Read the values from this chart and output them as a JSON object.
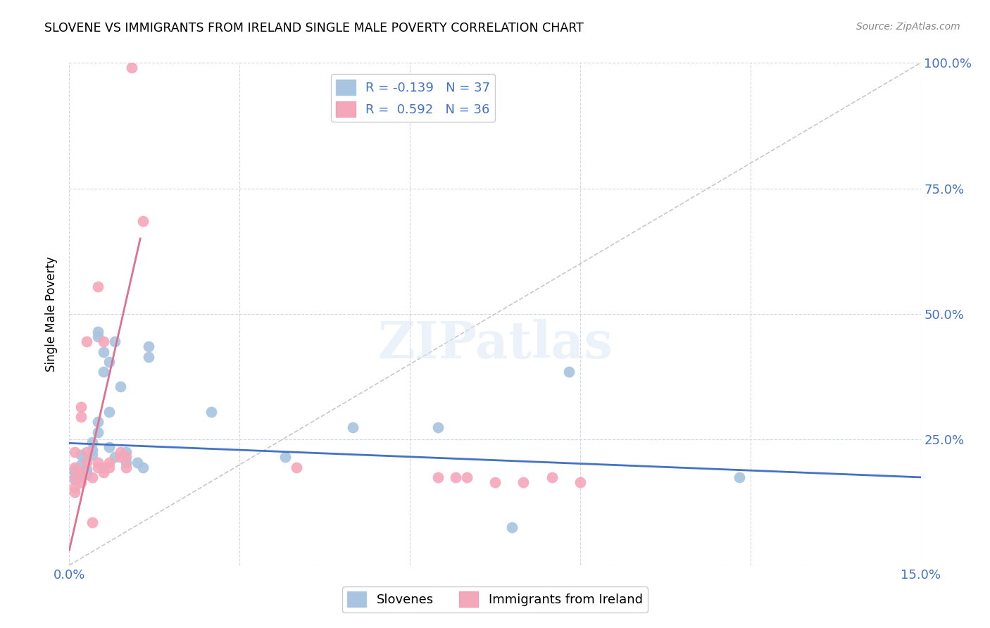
{
  "title": "SLOVENE VS IMMIGRANTS FROM IRELAND SINGLE MALE POVERTY CORRELATION CHART",
  "source": "Source: ZipAtlas.com",
  "ylabel_label": "Single Male Poverty",
  "x_min": 0.0,
  "x_max": 0.15,
  "y_min": 0.0,
  "y_max": 1.0,
  "x_ticks": [
    0.0,
    0.03,
    0.06,
    0.09,
    0.12,
    0.15
  ],
  "x_tick_labels": [
    "0.0%",
    "",
    "",
    "",
    "",
    "15.0%"
  ],
  "y_ticks": [
    0.0,
    0.25,
    0.5,
    0.75,
    1.0
  ],
  "y_tick_labels": [
    "",
    "25.0%",
    "50.0%",
    "75.0%",
    "100.0%"
  ],
  "slovene_color": "#a8c4e0",
  "ireland_color": "#f4a7b9",
  "slovene_line_color": "#4472c4",
  "ireland_line_color": "#e07090",
  "diagonal_color": "#c8c8c8",
  "watermark": "ZIPatlas",
  "legend_R1": "R = -0.139",
  "legend_N1": "N = 37",
  "legend_R2": "R =  0.592",
  "legend_N2": "N = 36",
  "slovene_points": [
    [
      0.001,
      0.19
    ],
    [
      0.001,
      0.17
    ],
    [
      0.001,
      0.185
    ],
    [
      0.002,
      0.2
    ],
    [
      0.002,
      0.22
    ],
    [
      0.002,
      0.175
    ],
    [
      0.003,
      0.21
    ],
    [
      0.003,
      0.19
    ],
    [
      0.003,
      0.18
    ],
    [
      0.004,
      0.23
    ],
    [
      0.004,
      0.245
    ],
    [
      0.004,
      0.22
    ],
    [
      0.005,
      0.265
    ],
    [
      0.005,
      0.285
    ],
    [
      0.005,
      0.465
    ],
    [
      0.005,
      0.455
    ],
    [
      0.006,
      0.385
    ],
    [
      0.006,
      0.425
    ],
    [
      0.007,
      0.235
    ],
    [
      0.007,
      0.305
    ],
    [
      0.007,
      0.405
    ],
    [
      0.008,
      0.445
    ],
    [
      0.008,
      0.215
    ],
    [
      0.009,
      0.355
    ],
    [
      0.01,
      0.225
    ],
    [
      0.01,
      0.205
    ],
    [
      0.012,
      0.205
    ],
    [
      0.013,
      0.195
    ],
    [
      0.014,
      0.435
    ],
    [
      0.014,
      0.415
    ],
    [
      0.025,
      0.305
    ],
    [
      0.038,
      0.215
    ],
    [
      0.05,
      0.275
    ],
    [
      0.065,
      0.275
    ],
    [
      0.078,
      0.075
    ],
    [
      0.088,
      0.385
    ],
    [
      0.118,
      0.175
    ]
  ],
  "ireland_points": [
    [
      0.001,
      0.195
    ],
    [
      0.001,
      0.225
    ],
    [
      0.001,
      0.175
    ],
    [
      0.001,
      0.155
    ],
    [
      0.001,
      0.145
    ],
    [
      0.002,
      0.295
    ],
    [
      0.002,
      0.315
    ],
    [
      0.002,
      0.185
    ],
    [
      0.002,
      0.165
    ],
    [
      0.003,
      0.445
    ],
    [
      0.003,
      0.225
    ],
    [
      0.003,
      0.205
    ],
    [
      0.004,
      0.085
    ],
    [
      0.004,
      0.175
    ],
    [
      0.005,
      0.555
    ],
    [
      0.005,
      0.205
    ],
    [
      0.005,
      0.195
    ],
    [
      0.006,
      0.445
    ],
    [
      0.006,
      0.185
    ],
    [
      0.006,
      0.195
    ],
    [
      0.007,
      0.205
    ],
    [
      0.007,
      0.195
    ],
    [
      0.009,
      0.215
    ],
    [
      0.009,
      0.225
    ],
    [
      0.01,
      0.195
    ],
    [
      0.01,
      0.215
    ],
    [
      0.011,
      0.99
    ],
    [
      0.013,
      0.685
    ],
    [
      0.04,
      0.195
    ],
    [
      0.065,
      0.175
    ],
    [
      0.068,
      0.175
    ],
    [
      0.07,
      0.175
    ],
    [
      0.075,
      0.165
    ],
    [
      0.08,
      0.165
    ],
    [
      0.085,
      0.175
    ],
    [
      0.09,
      0.165
    ]
  ],
  "slovene_trend_x": [
    0.0,
    0.15
  ],
  "slovene_trend_y": [
    0.243,
    0.175
  ],
  "ireland_trend_x": [
    0.0,
    0.0125
  ],
  "ireland_trend_y": [
    0.03,
    0.65
  ]
}
